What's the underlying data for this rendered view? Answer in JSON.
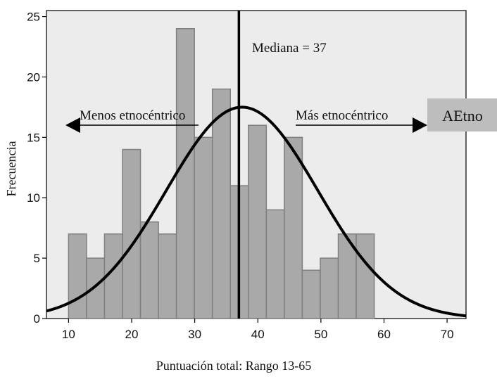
{
  "chart_data": {
    "type": "bar",
    "xlabel": "Puntuación total: Rango 13-65",
    "ylabel": "Frecuencia",
    "xlim": [
      6.5,
      73
    ],
    "ylim": [
      0,
      25.5
    ],
    "xticks": [
      10,
      20,
      30,
      40,
      50,
      60,
      70
    ],
    "yticks": [
      0,
      5,
      10,
      15,
      20,
      25
    ],
    "grid": false,
    "bin_width": 2.85,
    "bins_start": [
      10.0,
      12.85,
      15.7,
      18.55,
      21.4,
      24.25,
      27.1,
      29.95,
      32.8,
      35.65,
      38.5,
      41.35,
      44.2,
      47.05,
      49.9,
      52.75,
      55.6,
      58.45,
      61.3,
      64.15
    ],
    "values": [
      7,
      5,
      7,
      14,
      8,
      7,
      24,
      15,
      19,
      11,
      16,
      9,
      15,
      4,
      5,
      7,
      7,
      0,
      0,
      0
    ],
    "normal_curve": {
      "mean": 37.5,
      "sd": 12.0,
      "peak": 17.5
    },
    "median": {
      "value": 37,
      "label": "Mediana = 37"
    },
    "annotations": {
      "left": "Menos etnocéntrico",
      "right": "Más etnocéntrico",
      "badge": "AEtno"
    },
    "colors": {
      "plot_background": "#ececec",
      "bar_fill": "#a9a9a9",
      "bar_stroke": "#7f7f7f",
      "curve": "#000000",
      "badge_fill": "#bdbdbd"
    }
  }
}
